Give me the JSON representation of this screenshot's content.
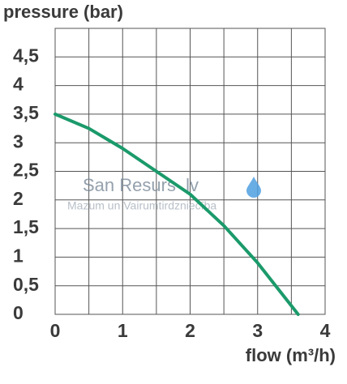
{
  "chart_data": {
    "type": "line",
    "title": "pressure (bar)",
    "x_label": "flow (m³/h)",
    "watermark": "San Resurs .lv",
    "watermark_subtitle": "Mazum un Vairumtirdzniecība",
    "x": [
      0,
      0.5,
      1,
      1.5,
      2,
      2.5,
      3,
      3.6
    ],
    "series": [
      {
        "color": "#1b9a6b",
        "values": [
          3.5,
          3.25,
          2.9,
          2.5,
          2.1,
          1.55,
          0.9,
          0
        ]
      }
    ],
    "xlim": [
      0,
      4
    ],
    "xticks": [
      0,
      1,
      2,
      3,
      4
    ],
    "ylim": [
      0,
      5
    ],
    "yticks": [
      0,
      {
        "value": 0.5,
        "label": "0,5"
      },
      1,
      {
        "value": 1.5,
        "label": "1,5"
      },
      2,
      {
        "value": 2.5,
        "label": "2,5"
      },
      3,
      {
        "value": 3.5,
        "label": "3,5"
      },
      4,
      {
        "value": 4.5,
        "label": "4,5"
      }
    ],
    "grid": true
  }
}
